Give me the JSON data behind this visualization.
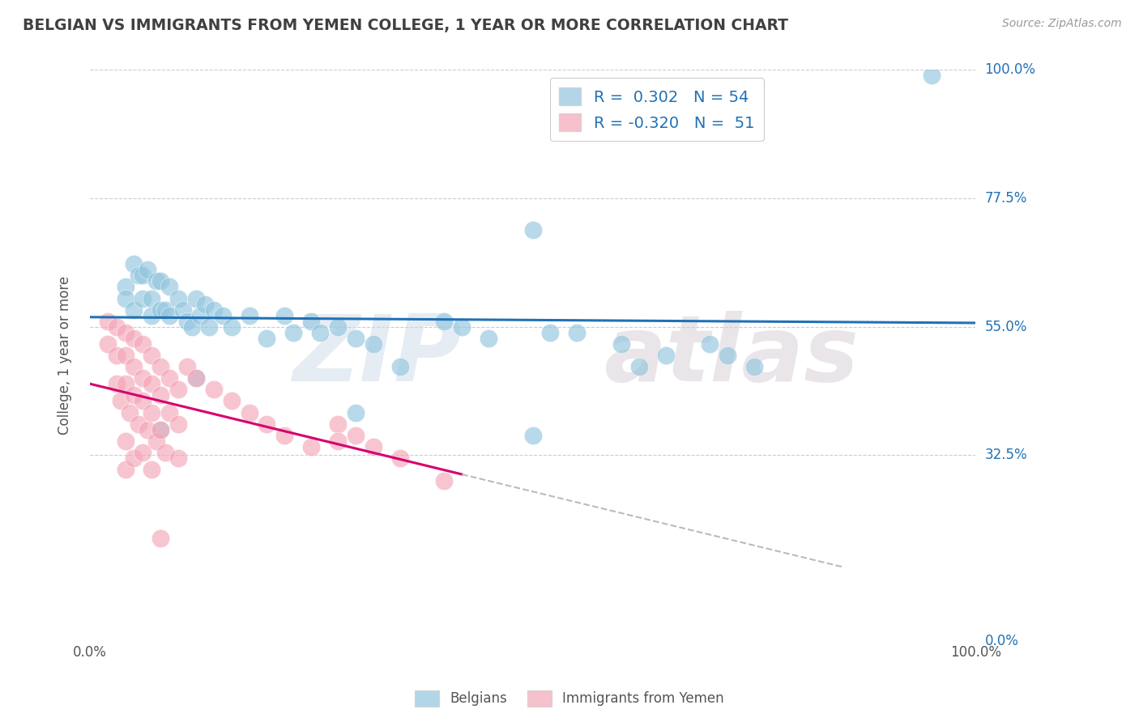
{
  "title": "BELGIAN VS IMMIGRANTS FROM YEMEN COLLEGE, 1 YEAR OR MORE CORRELATION CHART",
  "source_text": "Source: ZipAtlas.com",
  "ylabel": "College, 1 year or more",
  "color_blue": "#92c5de",
  "color_pink": "#f4a6b8",
  "color_blue_line": "#2171b5",
  "color_pink_line": "#d6006e",
  "color_dashed": "#bbbbbb",
  "color_grid": "#cccccc",
  "color_title": "#404040",
  "color_axis_label": "#2171b5",
  "ytick_positions": [
    0.0,
    0.325,
    0.55,
    0.775,
    1.0
  ],
  "ytick_labels": [
    "0.0%",
    "32.5%",
    "55.0%",
    "77.5%",
    "100.0%"
  ],
  "xtick_positions": [
    0.0,
    1.0
  ],
  "xtick_labels": [
    "0.0%",
    "100.0%"
  ],
  "legend_R1": "0.302",
  "legend_N1": "54",
  "legend_R2": "-0.320",
  "legend_N2": "51",
  "blue_scatter": [
    [
      0.04,
      0.62
    ],
    [
      0.04,
      0.6
    ],
    [
      0.05,
      0.66
    ],
    [
      0.05,
      0.58
    ],
    [
      0.055,
      0.64
    ],
    [
      0.06,
      0.64
    ],
    [
      0.06,
      0.6
    ],
    [
      0.065,
      0.65
    ],
    [
      0.07,
      0.6
    ],
    [
      0.07,
      0.57
    ],
    [
      0.075,
      0.63
    ],
    [
      0.08,
      0.63
    ],
    [
      0.08,
      0.58
    ],
    [
      0.085,
      0.58
    ],
    [
      0.09,
      0.62
    ],
    [
      0.09,
      0.57
    ],
    [
      0.1,
      0.6
    ],
    [
      0.105,
      0.58
    ],
    [
      0.11,
      0.56
    ],
    [
      0.115,
      0.55
    ],
    [
      0.12,
      0.6
    ],
    [
      0.125,
      0.57
    ],
    [
      0.13,
      0.59
    ],
    [
      0.135,
      0.55
    ],
    [
      0.14,
      0.58
    ],
    [
      0.15,
      0.57
    ],
    [
      0.16,
      0.55
    ],
    [
      0.18,
      0.57
    ],
    [
      0.2,
      0.53
    ],
    [
      0.22,
      0.57
    ],
    [
      0.23,
      0.54
    ],
    [
      0.25,
      0.56
    ],
    [
      0.26,
      0.54
    ],
    [
      0.28,
      0.55
    ],
    [
      0.3,
      0.53
    ],
    [
      0.32,
      0.52
    ],
    [
      0.35,
      0.48
    ],
    [
      0.4,
      0.56
    ],
    [
      0.42,
      0.55
    ],
    [
      0.45,
      0.53
    ],
    [
      0.5,
      0.36
    ],
    [
      0.52,
      0.54
    ],
    [
      0.55,
      0.54
    ],
    [
      0.6,
      0.52
    ],
    [
      0.62,
      0.48
    ],
    [
      0.65,
      0.5
    ],
    [
      0.7,
      0.52
    ],
    [
      0.72,
      0.5
    ],
    [
      0.75,
      0.48
    ],
    [
      0.5,
      0.72
    ],
    [
      0.95,
      0.99
    ],
    [
      0.08,
      0.37
    ],
    [
      0.3,
      0.4
    ],
    [
      0.12,
      0.46
    ]
  ],
  "pink_scatter": [
    [
      0.02,
      0.56
    ],
    [
      0.02,
      0.52
    ],
    [
      0.03,
      0.55
    ],
    [
      0.03,
      0.5
    ],
    [
      0.03,
      0.45
    ],
    [
      0.035,
      0.42
    ],
    [
      0.04,
      0.54
    ],
    [
      0.04,
      0.5
    ],
    [
      0.04,
      0.45
    ],
    [
      0.045,
      0.4
    ],
    [
      0.05,
      0.53
    ],
    [
      0.05,
      0.48
    ],
    [
      0.05,
      0.43
    ],
    [
      0.055,
      0.38
    ],
    [
      0.06,
      0.52
    ],
    [
      0.06,
      0.46
    ],
    [
      0.06,
      0.42
    ],
    [
      0.065,
      0.37
    ],
    [
      0.07,
      0.5
    ],
    [
      0.07,
      0.45
    ],
    [
      0.07,
      0.4
    ],
    [
      0.075,
      0.35
    ],
    [
      0.08,
      0.48
    ],
    [
      0.08,
      0.43
    ],
    [
      0.08,
      0.37
    ],
    [
      0.085,
      0.33
    ],
    [
      0.09,
      0.46
    ],
    [
      0.09,
      0.4
    ],
    [
      0.1,
      0.44
    ],
    [
      0.1,
      0.38
    ],
    [
      0.1,
      0.32
    ],
    [
      0.11,
      0.48
    ],
    [
      0.12,
      0.46
    ],
    [
      0.14,
      0.44
    ],
    [
      0.16,
      0.42
    ],
    [
      0.18,
      0.4
    ],
    [
      0.2,
      0.38
    ],
    [
      0.22,
      0.36
    ],
    [
      0.25,
      0.34
    ],
    [
      0.28,
      0.38
    ],
    [
      0.28,
      0.35
    ],
    [
      0.3,
      0.36
    ],
    [
      0.32,
      0.34
    ],
    [
      0.35,
      0.32
    ],
    [
      0.4,
      0.28
    ],
    [
      0.04,
      0.35
    ],
    [
      0.04,
      0.3
    ],
    [
      0.05,
      0.32
    ],
    [
      0.06,
      0.33
    ],
    [
      0.07,
      0.3
    ],
    [
      0.08,
      0.18
    ]
  ]
}
